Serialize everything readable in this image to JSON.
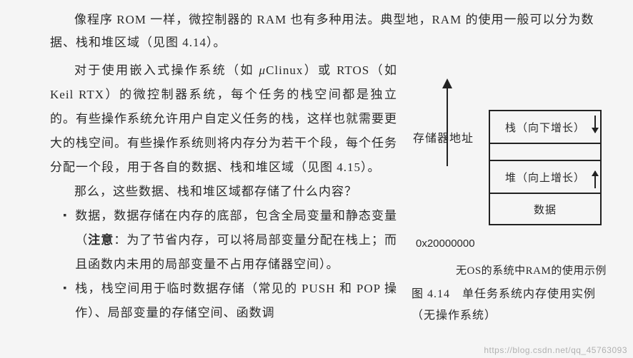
{
  "para1": "像程序 ROM 一样，微控制器的 RAM 也有多种用法。典型地，RAM 的使用一般可以分为数据、栈和堆区域（见图 4.14）。",
  "para2_parts": {
    "a": "对于使用嵌入式操作系统（如 ",
    "mu": "μ",
    "b": "Clinux）或 RTOS（如 Keil RTX）的微控制器系统，每个任务的栈空间都是独立的。有些操作系统允许用户自定义任务的栈，这样也就需要更大的栈空间。有些操作系统则将内存分为若干个段，每个任务分配一个段，用于各自的数据、栈和堆区域（见图 4.15）。"
  },
  "para3": "那么，这些数据、栈和堆区域都存储了什么内容？",
  "bullets": {
    "b1a": "数据，数据存储在内存的底部，包含全局变量和静态变量（",
    "b1note": "注意",
    "b1b": "：为了节省内存，可以将局部变量分配在栈上；而且函数内未用的局部变量不占用存储器空间）。",
    "b2": "栈，栈空间用于临时数据存储（常见的 PUSH 和 POP 操作）、局部变量的存储空间、函数调"
  },
  "diagram": {
    "mem_axis_label": "存储器地址",
    "box_stack": "栈（向下增长）",
    "box_heap": "堆（向上增长）",
    "box_data": "数据",
    "addr_base": "0x20000000",
    "under_caption": "无OS的系统中RAM的使用示例",
    "colors": {
      "line": "#222222",
      "text": "#2a2a2a",
      "bg": "#f5f5f5"
    }
  },
  "fig_caption": "图 4.14　单任务系统内存使用实例（无操作系统）",
  "watermark": "https://blog.csdn.net/qq_45763093"
}
